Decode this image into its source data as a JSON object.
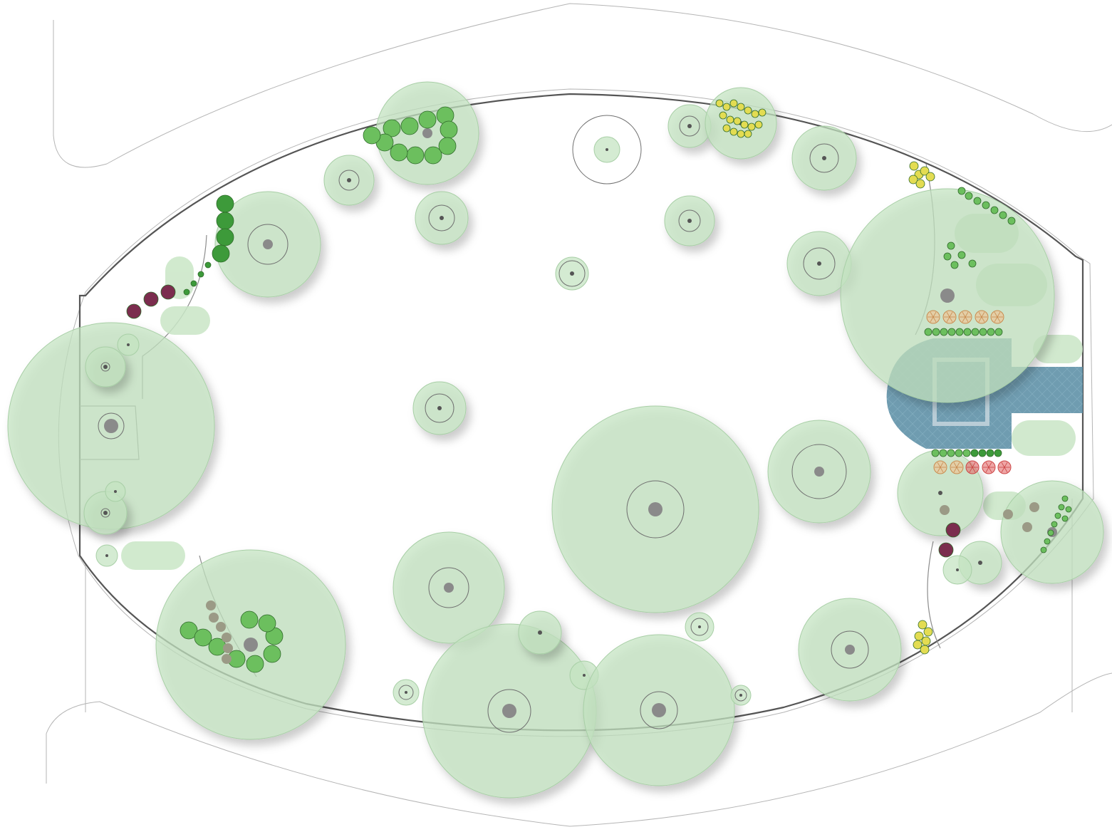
{
  "plan": {
    "colors": {
      "canopy": "#c3e3c0",
      "canopy_stroke": "#a8cfa6",
      "trunk": "#8a8a8a",
      "shrub_green": "#6cbf5e",
      "shrub_dark_green": "#3d9a3a",
      "shrub_purple": "#7b2d4e",
      "shrub_yellow": "#e3dc52",
      "flower_peach": "#f2c08e",
      "flower_red": "#e36b6b",
      "paving_blue": "#5e8fa6",
      "boulder": "#9b9a86",
      "outline": "#8c8c8c"
    },
    "icons": [
      "tree-canopy-icon",
      "shrub-icon",
      "flower-icon",
      "boulder-icon",
      "paving-icon"
    ]
  }
}
